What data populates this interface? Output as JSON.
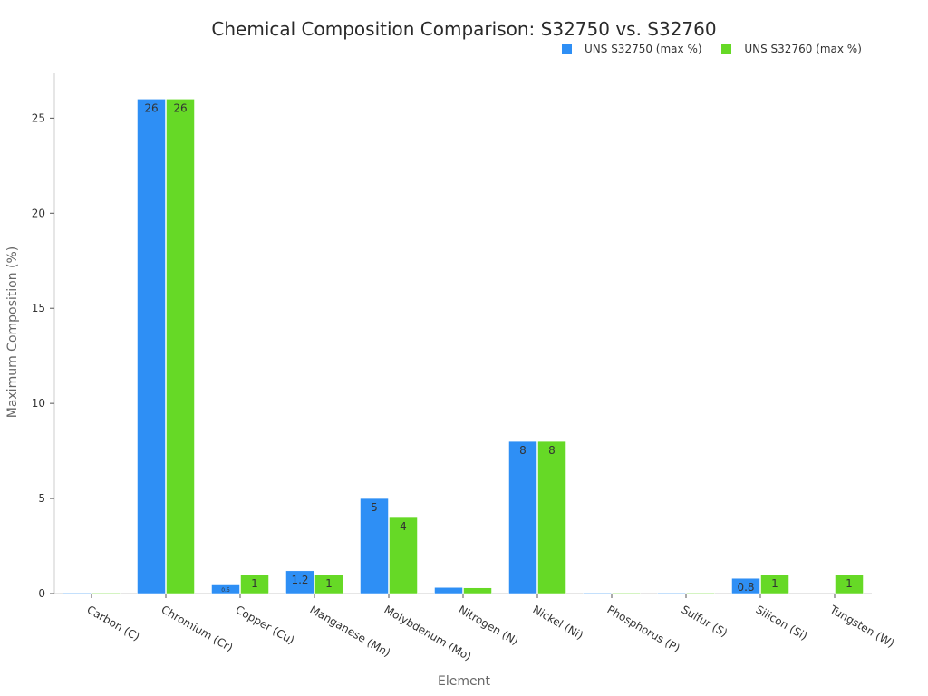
{
  "chart_data": {
    "type": "bar",
    "title": "Chemical Composition Comparison: S32750 vs. S32760",
    "xlabel": "Element",
    "ylabel": "Maximum Composition (%)",
    "ylim": [
      0,
      27.4
    ],
    "yticks": [
      0,
      5,
      10,
      15,
      20,
      25
    ],
    "categories": [
      "Carbon (C)",
      "Chromium (Cr)",
      "Copper (Cu)",
      "Manganese (Mn)",
      "Molybdenum (Mo)",
      "Nitrogen (N)",
      "Nickel (Ni)",
      "Phosphorus (P)",
      "Sulfur (S)",
      "Silicon (Si)",
      "Tungsten (W)"
    ],
    "series": [
      {
        "name": "UNS S32750 (max %)",
        "color": "#2e8ff5",
        "values": [
          0.03,
          26,
          0.5,
          1.2,
          5,
          0.32,
          8,
          0.035,
          0.02,
          0.8,
          null
        ],
        "labels": [
          "",
          "26",
          "0.5",
          "1.2",
          "5",
          "",
          "8",
          "",
          "",
          "0.8",
          ""
        ]
      },
      {
        "name": "UNS S32760 (max %)",
        "color": "#66d926",
        "values": [
          0.03,
          26,
          1,
          1,
          4,
          0.3,
          8,
          0.03,
          0.01,
          1,
          1
        ],
        "labels": [
          "",
          "26",
          "1",
          "1",
          "4",
          "",
          "8",
          "",
          "",
          "1",
          "1"
        ]
      }
    ],
    "legend_position": "top-right",
    "grid": false
  }
}
